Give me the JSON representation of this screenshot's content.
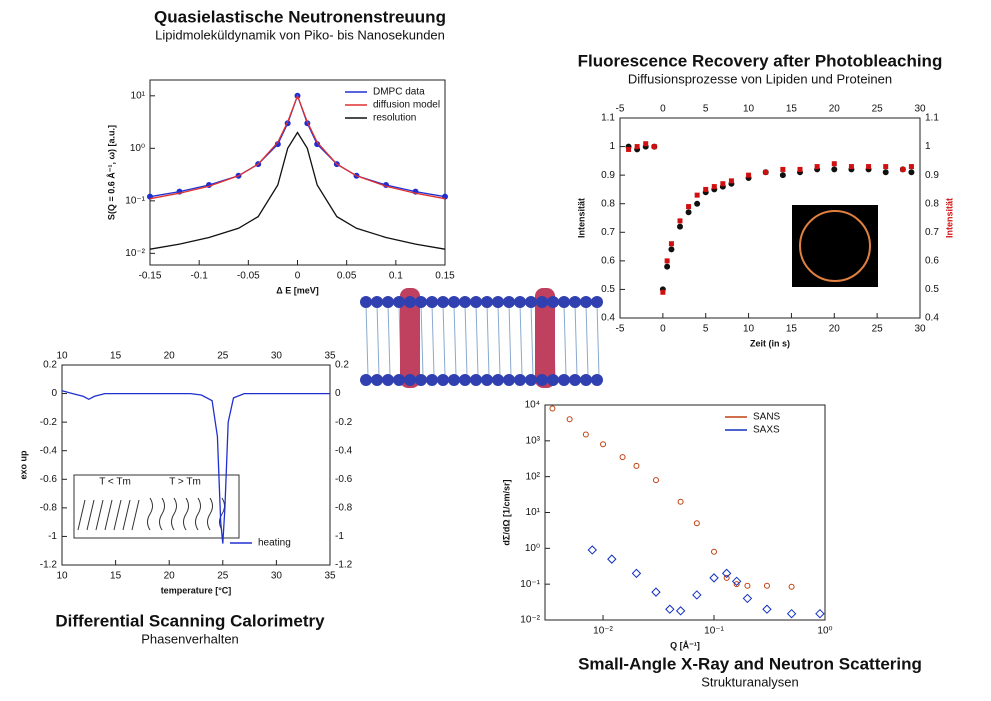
{
  "chart_data": [
    {
      "type": "line",
      "title": "Quasielastische Neutronenstreuung",
      "subtitle": "Lipidmoleküldynamik von Piko- bis Nanosekunden",
      "x_label": "Δ E [meV]",
      "y_label": "S(Q = 0.6 Å⁻¹, ω) [a.u.]",
      "log_y": true,
      "x": [
        -0.15,
        -0.12,
        -0.09,
        -0.06,
        -0.04,
        -0.02,
        -0.01,
        0,
        0.01,
        0.02,
        0.04,
        0.06,
        0.09,
        0.12,
        0.15
      ],
      "series": [
        {
          "name": "DMPC data",
          "color": "#2030d0",
          "marker": "circle",
          "values": [
            0.12,
            0.15,
            0.2,
            0.3,
            0.5,
            1.2,
            3,
            10,
            3,
            1.2,
            0.5,
            0.3,
            0.2,
            0.15,
            0.12
          ]
        },
        {
          "name": "diffusion model",
          "color": "#e03030",
          "values": [
            0.11,
            0.14,
            0.19,
            0.3,
            0.5,
            1.3,
            3.2,
            10,
            3.2,
            1.3,
            0.5,
            0.3,
            0.19,
            0.14,
            0.11
          ]
        },
        {
          "name": "resolution",
          "color": "#111111",
          "values": [
            0.012,
            0.015,
            0.02,
            0.03,
            0.05,
            0.2,
            1,
            2,
            1,
            0.2,
            0.05,
            0.03,
            0.02,
            0.015,
            0.012
          ]
        }
      ],
      "xlim": [
        -0.15,
        0.15
      ],
      "xticks": [
        -0.15,
        -0.1,
        -0.05,
        0,
        0.05,
        0.1,
        0.15
      ],
      "ylim": [
        0.006,
        20
      ],
      "yticks": [
        {
          "value": 0.01,
          "label": "10⁻²"
        },
        {
          "value": 0.1,
          "label": "10⁻¹"
        },
        {
          "value": 1,
          "label": "10⁰"
        },
        {
          "value": 10,
          "label": "10¹"
        }
      ],
      "legend": "upper right"
    },
    {
      "type": "scatter",
      "title": "Fluorescence Recovery after Photobleaching",
      "subtitle": "Diffusionsprozesse von Lipiden und Proteinen",
      "x_label": "Zeit (in s)",
      "y_label": "Intensität",
      "y2_label": "Intensität",
      "mirror_ticks": true,
      "x": [
        -4,
        -3,
        -2,
        -1,
        0,
        0.5,
        1,
        2,
        3,
        4,
        5,
        6,
        7,
        8,
        10,
        12,
        14,
        16,
        18,
        20,
        22,
        24,
        26,
        28,
        29
      ],
      "series": [
        {
          "color": "#111111",
          "marker": "circle",
          "values": [
            1,
            0.99,
            1,
            1,
            0.5,
            0.58,
            0.64,
            0.72,
            0.77,
            0.8,
            0.84,
            0.85,
            0.86,
            0.87,
            0.89,
            0.91,
            0.9,
            0.91,
            0.92,
            0.92,
            0.92,
            0.92,
            0.91,
            0.92,
            0.91
          ]
        },
        {
          "color": "#d01010",
          "marker": "square",
          "values": [
            0.99,
            1,
            1.01,
            1,
            0.49,
            0.6,
            0.66,
            0.74,
            0.79,
            0.83,
            0.85,
            0.86,
            0.87,
            0.88,
            0.9,
            0.91,
            0.92,
            0.92,
            0.93,
            0.94,
            0.93,
            0.93,
            0.93,
            0.92,
            0.93
          ]
        }
      ],
      "xlim": [
        -5,
        30
      ],
      "xticks": [
        -5,
        0,
        5,
        10,
        15,
        20,
        25,
        30
      ],
      "ylim": [
        0.4,
        1.1
      ],
      "yticks": [
        0.4,
        0.5,
        0.6,
        0.7,
        0.8,
        0.9,
        1,
        1.1
      ]
    },
    {
      "type": "line",
      "title": "Differential Scanning Calorimetry",
      "subtitle": "Phasenverhalten",
      "x_label": "temperature [°C]",
      "y_label": "exo up",
      "mirror_ticks": true,
      "annotations": [
        "T < Tm",
        "T > Tm"
      ],
      "x": [
        10,
        11,
        12,
        12.5,
        13,
        14,
        16,
        18,
        20,
        22,
        23,
        24,
        24.5,
        24.8,
        25,
        25.2,
        25.5,
        26,
        27,
        30,
        35
      ],
      "series": [
        {
          "name": "heating",
          "color": "#2030d0",
          "values": [
            0.02,
            0,
            -0.02,
            -0.04,
            -0.02,
            0,
            0,
            0,
            0,
            0,
            -0.01,
            -0.05,
            -0.3,
            -0.9,
            -1.05,
            -0.8,
            -0.2,
            -0.03,
            0,
            0,
            0
          ]
        }
      ],
      "xlim": [
        10,
        35
      ],
      "xticks": [
        10,
        15,
        20,
        25,
        30,
        35
      ],
      "ylim": [
        -1.2,
        0.2
      ],
      "yticks": [
        -1.2,
        -1,
        -0.8,
        -0.6,
        -0.4,
        -0.2,
        0,
        0.2
      ],
      "legend": "lower right"
    },
    {
      "type": "scatter",
      "title": "Small-Angle X-Ray and Neutron Scattering",
      "subtitle": "Strukturanalysen",
      "x_label": "Q [Å⁻¹]",
      "y_label": "dΣ/dΩ [1/cm/sr]",
      "log_x": true,
      "log_y": true,
      "series": [
        {
          "name": "SANS",
          "color": "#c04010",
          "marker": "circle",
          "x": [
            0.0035,
            0.005,
            0.007,
            0.01,
            0.015,
            0.02,
            0.03,
            0.05,
            0.07,
            0.1,
            0.13,
            0.16,
            0.2,
            0.3,
            0.5
          ],
          "values": [
            8000,
            4000,
            1500,
            800,
            350,
            200,
            80,
            20,
            5,
            0.8,
            0.15,
            0.1,
            0.09,
            0.09,
            0.085
          ]
        },
        {
          "name": "SAXS",
          "color": "#1030c0",
          "marker": "diamond",
          "x": [
            0.008,
            0.012,
            0.02,
            0.03,
            0.04,
            0.05,
            0.07,
            0.1,
            0.13,
            0.16,
            0.2,
            0.3,
            0.5,
            0.9
          ],
          "values": [
            0.9,
            0.5,
            0.2,
            0.06,
            0.02,
            0.018,
            0.05,
            0.15,
            0.2,
            0.12,
            0.04,
            0.02,
            0.015,
            0.015
          ]
        }
      ],
      "xlim": [
        0.003,
        1
      ],
      "xticks": [
        {
          "value": 0.01,
          "label": "10⁻²"
        },
        {
          "value": 0.1,
          "label": "10⁻¹"
        },
        {
          "value": 1,
          "label": "10⁰"
        }
      ],
      "ylim": [
        0.01,
        10000
      ],
      "yticks": [
        {
          "value": 0.01,
          "label": "10⁻²"
        },
        {
          "value": 0.1,
          "label": "10⁻¹"
        },
        {
          "value": 1,
          "label": "10⁰"
        },
        {
          "value": 10,
          "label": "10¹"
        },
        {
          "value": 100,
          "label": "10²"
        },
        {
          "value": 1000,
          "label": "10³"
        },
        {
          "value": 10000,
          "label": "10⁴"
        }
      ],
      "legend": "upper right"
    }
  ]
}
